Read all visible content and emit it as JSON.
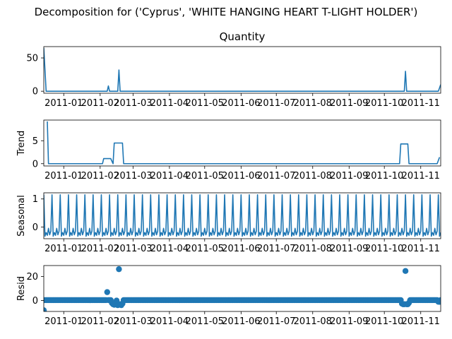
{
  "figure": {
    "suptitle": "Decomposition for ('Cyprus', 'WHITE HANGING HEART T-LIGHT HOLDER')",
    "line_color": "#1f77b4"
  },
  "x_axis": {
    "start_day": 0,
    "end_day": 338,
    "tick_labels": [
      "2011-01",
      "2011-02",
      "2011-03",
      "2011-04",
      "2011-05",
      "2011-06",
      "2011-07",
      "2011-08",
      "2011-09",
      "2011-10",
      "2011-11"
    ],
    "tick_days": [
      17,
      48,
      76,
      107,
      137,
      168,
      198,
      229,
      260,
      290,
      321
    ]
  },
  "chart_data": [
    {
      "type": "line",
      "title": "Quantity",
      "ylabel": "",
      "ylim": [
        -3,
        67
      ],
      "yticks": [
        0,
        50
      ],
      "series": [
        {
          "name": "Quantity",
          "points": [
            [
              0,
              65
            ],
            [
              2,
              0
            ],
            [
              54,
              0
            ],
            [
              55,
              8
            ],
            [
              56,
              0
            ],
            [
              63,
              0
            ],
            [
              64,
              32
            ],
            [
              65,
              0
            ],
            [
              307,
              0
            ],
            [
              308,
              30
            ],
            [
              309,
              0
            ],
            [
              336,
              0
            ],
            [
              337,
              5
            ],
            [
              338,
              10
            ]
          ]
        }
      ]
    },
    {
      "type": "line",
      "title": "",
      "ylabel": "Trend",
      "ylim": [
        -0.5,
        9.5
      ],
      "yticks": [
        0,
        5
      ],
      "series": [
        {
          "name": "Trend",
          "points": [
            [
              3,
              9.2
            ],
            [
              4,
              0
            ],
            [
              50,
              0
            ],
            [
              51,
              1.1
            ],
            [
              57,
              1.1
            ],
            [
              59,
              0
            ],
            [
              60,
              4.5
            ],
            [
              67,
              4.5
            ],
            [
              68,
              0
            ],
            [
              303,
              0
            ],
            [
              304,
              4.3
            ],
            [
              310,
              4.3
            ],
            [
              311,
              0
            ],
            [
              335,
              0
            ],
            [
              337,
              1.4
            ]
          ]
        }
      ]
    },
    {
      "type": "line",
      "title": "",
      "ylabel": "Seasonal",
      "ylim": [
        -0.42,
        1.22
      ],
      "yticks": [
        0,
        1
      ],
      "period_days": 7,
      "series": [
        {
          "name": "Seasonal",
          "weekly_pattern": [
            1.15,
            -0.33,
            -0.2,
            -0.3,
            -0.05,
            -0.28,
            -0.15
          ]
        }
      ]
    },
    {
      "type": "scatter",
      "title": "",
      "ylabel": "Resid",
      "ylim": [
        -9,
        29
      ],
      "yticks": [
        0,
        20
      ],
      "series": [
        {
          "name": "Resid",
          "default_value": 0.4,
          "points": [
            [
              0,
              -8
            ],
            [
              54,
              7
            ],
            [
              58,
              -2
            ],
            [
              59,
              -3
            ],
            [
              60,
              -3.5
            ],
            [
              61,
              -1.8
            ],
            [
              62,
              0
            ],
            [
              63,
              -3.8
            ],
            [
              64,
              26
            ],
            [
              65,
              -3
            ],
            [
              66,
              -3.8
            ],
            [
              67,
              -2.5
            ],
            [
              305,
              -2.5
            ],
            [
              306,
              -3
            ],
            [
              307,
              -3
            ],
            [
              308,
              24.5
            ],
            [
              309,
              -3
            ],
            [
              310,
              -3
            ],
            [
              311,
              -1.8
            ],
            [
              336,
              -1
            ],
            [
              337,
              -1
            ]
          ]
        }
      ]
    }
  ]
}
